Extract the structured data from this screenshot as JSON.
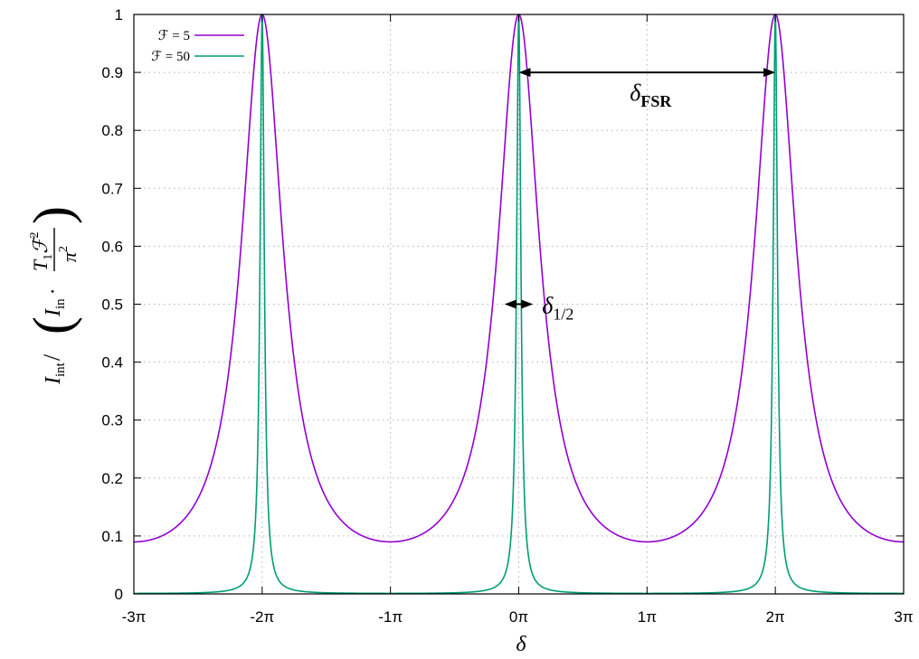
{
  "chart_data": {
    "type": "line",
    "xlabel": "δ",
    "ylabel": {
      "i_int": "I",
      "int_sub": "int",
      "slash": "/",
      "i_in": "I",
      "in_sub": "in",
      "dot": "·",
      "num_t": "T",
      "num_sub": "1",
      "num_f": "ℱ",
      "num_sup": "2",
      "den": "π",
      "den_sup": "2"
    },
    "xlim": [
      -3,
      3
    ],
    "x_unit": "π",
    "ylim": [
      0,
      1
    ],
    "grid": true,
    "legend_position": "top-left",
    "x_ticks": [
      "-3π",
      "-2π",
      "-1π",
      "0π",
      "1π",
      "2π",
      "3π"
    ],
    "y_ticks": [
      "0",
      "0.1",
      "0.2",
      "0.3",
      "0.4",
      "0.5",
      "0.6",
      "0.7",
      "0.8",
      "0.9",
      "1"
    ],
    "function": "1 / (1 + (4F²/π²) sin²(δ/2))",
    "series": [
      {
        "name": "ℱ = 5",
        "finesse": 5,
        "color": "#9400d3"
      },
      {
        "name": "ℱ = 50",
        "finesse": 50,
        "color": "#009e73"
      }
    ],
    "annotations": {
      "fsr": {
        "symbol": "δ",
        "sub": "FSR",
        "from": 0,
        "to": 2,
        "y": 0.9
      },
      "half": {
        "symbol": "δ",
        "sub": "1/2",
        "from": -0.111,
        "to": 0.111,
        "y": 0.5
      }
    }
  }
}
